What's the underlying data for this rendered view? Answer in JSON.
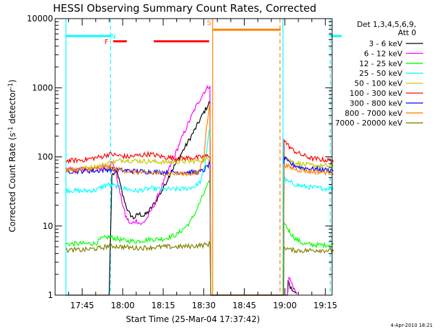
{
  "chart_data": {
    "type": "line",
    "title": "HESSI Observing Summary Count Rates, Corrected",
    "xlabel": "Start Time (25-Mar-04 17:37:42)",
    "ylabel": "Corrected Count Rate (s",
    "ylabel_sup1": "-1",
    "ylabel_mid": " detector",
    "ylabel_sup2": "-1",
    "ylabel_end": ")",
    "yscale": "log",
    "ylim": [
      1,
      10000
    ],
    "xlim_minutes": [
      17.7,
      19.37
    ],
    "y_ticks": [
      {
        "value": 1,
        "label": "1"
      },
      {
        "value": 10,
        "label": "10"
      },
      {
        "value": 100,
        "label": "100"
      },
      {
        "value": 1000,
        "label": "1000"
      },
      {
        "value": 10000,
        "label": "10000"
      }
    ],
    "x_ticks": [
      {
        "value": 45,
        "label": "17:45"
      },
      {
        "value": 60,
        "label": "18:00"
      },
      {
        "value": 75,
        "label": "18:15"
      },
      {
        "value": 90,
        "label": "18:30"
      },
      {
        "value": 105,
        "label": "18:45"
      },
      {
        "value": 120,
        "label": "19:00"
      },
      {
        "value": 135,
        "label": "19:15"
      }
    ],
    "legend_header": [
      "Det 1,3,4,5,6,9,",
      "Att 0"
    ],
    "legend_placement": "right",
    "series": [
      {
        "name": "3 - 6 keV",
        "color": "#000000",
        "pts": [
          [
            39,
            1
          ],
          [
            55,
            1
          ],
          [
            56,
            55
          ],
          [
            58,
            60
          ],
          [
            60,
            28
          ],
          [
            62,
            16
          ],
          [
            64,
            13
          ],
          [
            66,
            15
          ],
          [
            68,
            14
          ],
          [
            70,
            17
          ],
          [
            72,
            22
          ],
          [
            75,
            35
          ],
          [
            78,
            62
          ],
          [
            81,
            100
          ],
          [
            84,
            160
          ],
          [
            87,
            260
          ],
          [
            90,
            440
          ],
          [
            92.3,
            630
          ],
          [
            92.6,
            1
          ],
          [
            119.5,
            1
          ],
          [
            121,
            1
          ],
          [
            121.2,
            1.6
          ],
          [
            122,
            1.3
          ],
          [
            123,
            1.15
          ],
          [
            124.5,
            1.05
          ]
        ]
      },
      {
        "name": "6 - 12 keV",
        "color": "#ff00ff",
        "pts": [
          [
            39,
            65
          ],
          [
            52,
            68
          ],
          [
            53,
            72
          ],
          [
            56,
            82
          ],
          [
            57,
            72
          ],
          [
            59,
            30
          ],
          [
            61,
            14
          ],
          [
            63,
            10.5
          ],
          [
            65,
            12
          ],
          [
            67,
            10.5
          ],
          [
            69,
            13
          ],
          [
            71,
            18
          ],
          [
            73,
            27
          ],
          [
            75,
            42
          ],
          [
            78,
            80
          ],
          [
            81,
            155
          ],
          [
            84,
            290
          ],
          [
            87,
            520
          ],
          [
            90,
            860
          ],
          [
            92.3,
            1100
          ],
          [
            92.6,
            1
          ],
          [
            119.5,
            1
          ],
          [
            121,
            1
          ],
          [
            121.5,
            1.8
          ],
          [
            122.5,
            1.5
          ],
          [
            123.5,
            1.2
          ],
          [
            124.5,
            1.05
          ]
        ]
      },
      {
        "name": "12 - 25 keV",
        "color": "#00ff00",
        "pts": [
          [
            39,
            5.5
          ],
          [
            50,
            5.6
          ],
          [
            52,
            6.5
          ],
          [
            55,
            7
          ],
          [
            60,
            6.2
          ],
          [
            65,
            6
          ],
          [
            70,
            6.4
          ],
          [
            75,
            6.5
          ],
          [
            80,
            7.5
          ],
          [
            83,
            9.5
          ],
          [
            85,
            11.5
          ],
          [
            87,
            16
          ],
          [
            89,
            24
          ],
          [
            91,
            36
          ],
          [
            92.3,
            44
          ],
          [
            92.6,
            1
          ],
          [
            119.5,
            1
          ],
          [
            119.7,
            11
          ],
          [
            120.5,
            10
          ],
          [
            122,
            8
          ],
          [
            124,
            6.5
          ],
          [
            127,
            5.5
          ],
          [
            132,
            5.3
          ],
          [
            138,
            5.4
          ]
        ]
      },
      {
        "name": "25 - 50 keV",
        "color": "#00ffff",
        "pts": [
          [
            39,
            33
          ],
          [
            45,
            32
          ],
          [
            50,
            33
          ],
          [
            53,
            38
          ],
          [
            55,
            40
          ],
          [
            58,
            37
          ],
          [
            62,
            34
          ],
          [
            65,
            32
          ],
          [
            70,
            35
          ],
          [
            75,
            34
          ],
          [
            80,
            34
          ],
          [
            84,
            35
          ],
          [
            87,
            38
          ],
          [
            89,
            45
          ],
          [
            90.5,
            80
          ],
          [
            91.5,
            170
          ],
          [
            92.3,
            280
          ],
          [
            92.6,
            1
          ],
          [
            119.5,
            1
          ],
          [
            119.7,
            48
          ],
          [
            121,
            44
          ],
          [
            123,
            41
          ],
          [
            126,
            38
          ],
          [
            130,
            36
          ],
          [
            135,
            35
          ],
          [
            138,
            35
          ]
        ]
      },
      {
        "name": "50 - 100 keV",
        "color": "#c8c800",
        "pts": [
          [
            39,
            66
          ],
          [
            45,
            68
          ],
          [
            52,
            75
          ],
          [
            55,
            82
          ],
          [
            60,
            90
          ],
          [
            65,
            88
          ],
          [
            70,
            86
          ],
          [
            75,
            84
          ],
          [
            80,
            85
          ],
          [
            85,
            86
          ],
          [
            88,
            88
          ],
          [
            90,
            90
          ],
          [
            92.3,
            95
          ],
          [
            92.6,
            1
          ],
          [
            119.5,
            1
          ],
          [
            119.7,
            105
          ],
          [
            122,
            88
          ],
          [
            125,
            80
          ],
          [
            130,
            75
          ],
          [
            135,
            74
          ],
          [
            138,
            73
          ]
        ]
      },
      {
        "name": "100 - 300 keV",
        "color": "#ff0000",
        "pts": [
          [
            39,
            88
          ],
          [
            45,
            90
          ],
          [
            52,
            100
          ],
          [
            55,
            110
          ],
          [
            58,
            105
          ],
          [
            62,
            100
          ],
          [
            65,
            104
          ],
          [
            70,
            110
          ],
          [
            75,
            100
          ],
          [
            80,
            95
          ],
          [
            85,
            97
          ],
          [
            88,
            98
          ],
          [
            90,
            100
          ],
          [
            92.3,
            105
          ],
          [
            92.6,
            1
          ],
          [
            119.5,
            1
          ],
          [
            119.7,
            175
          ],
          [
            121,
            150
          ],
          [
            123,
            125
          ],
          [
            126,
            108
          ],
          [
            130,
            95
          ],
          [
            135,
            90
          ],
          [
            138,
            88
          ]
        ]
      },
      {
        "name": "300 - 800 keV",
        "color": "#0000ff",
        "pts": [
          [
            39,
            62
          ],
          [
            50,
            63
          ],
          [
            55,
            66
          ],
          [
            60,
            64
          ],
          [
            65,
            62
          ],
          [
            70,
            61
          ],
          [
            75,
            60
          ],
          [
            80,
            60
          ],
          [
            85,
            60
          ],
          [
            88,
            60
          ],
          [
            90,
            64
          ],
          [
            92.3,
            80
          ],
          [
            92.6,
            1
          ],
          [
            119.5,
            1
          ],
          [
            119.7,
            100
          ],
          [
            121,
            85
          ],
          [
            123,
            77
          ],
          [
            126,
            70
          ],
          [
            130,
            67
          ],
          [
            135,
            65
          ],
          [
            138,
            64
          ]
        ]
      },
      {
        "name": "800 - 7000 keV",
        "color": "#ff8000",
        "pts": [
          [
            39,
            64
          ],
          [
            45,
            66
          ],
          [
            50,
            68
          ],
          [
            55,
            70
          ],
          [
            58,
            66
          ],
          [
            62,
            62
          ],
          [
            65,
            60
          ],
          [
            70,
            58
          ],
          [
            75,
            58
          ],
          [
            80,
            57
          ],
          [
            85,
            57
          ],
          [
            88,
            58
          ],
          [
            90,
            100
          ],
          [
            91,
            260
          ],
          [
            92.3,
            600
          ],
          [
            92.6,
            1
          ],
          [
            119.5,
            1
          ],
          [
            119.7,
            78
          ],
          [
            122,
            70
          ],
          [
            125,
            65
          ],
          [
            130,
            61
          ],
          [
            135,
            60
          ],
          [
            138,
            59
          ]
        ]
      },
      {
        "name": "7000 - 20000 keV",
        "color": "#7f7f00",
        "pts": [
          [
            39,
            4.5
          ],
          [
            45,
            4.5
          ],
          [
            52,
            4.8
          ],
          [
            55,
            5.2
          ],
          [
            60,
            5
          ],
          [
            65,
            4.8
          ],
          [
            70,
            4.9
          ],
          [
            75,
            5
          ],
          [
            80,
            5
          ],
          [
            85,
            5.1
          ],
          [
            90,
            5.3
          ],
          [
            92.3,
            5.5
          ],
          [
            92.6,
            1
          ],
          [
            119.5,
            1
          ],
          [
            119.7,
            5
          ],
          [
            122,
            4.5
          ],
          [
            127,
            4.4
          ],
          [
            132,
            4.5
          ],
          [
            138,
            4.4
          ]
        ]
      }
    ],
    "state_bars": [
      {
        "flag": "N",
        "color": "#00ffff",
        "value": 5600,
        "segments": [
          [
            39,
            55.5
          ],
          [
            137,
            141
          ]
        ],
        "label_at": 56.5,
        "label_value": 5600
      },
      {
        "flag": "F",
        "color": "#ff0000",
        "value": 4700,
        "segments": [
          [
            56.5,
            61.5
          ],
          [
            71.5,
            92
          ]
        ],
        "label_at": 54,
        "label_value": 4700
      },
      {
        "flag": "S",
        "color": "#ff8000",
        "value": 6900,
        "segments": [
          [
            93.5,
            118.5
          ]
        ],
        "label_at": 92,
        "label_value": 8800
      }
    ],
    "gap_boundaries": [
      {
        "time": 39,
        "color": "#00ffff",
        "style": "solid"
      },
      {
        "time": 55.5,
        "color": "#00ffff",
        "style": "dashed"
      },
      {
        "time": 93.3,
        "color": "#ff8000",
        "style": "solid"
      },
      {
        "time": 118.2,
        "color": "#ff8000",
        "style": "dashed"
      },
      {
        "time": 119.3,
        "color": "#00ffff",
        "style": "solid"
      },
      {
        "time": 136.8,
        "color": "#00ffff",
        "style": "dashed"
      }
    ]
  },
  "footer": {
    "date_stamp": "4-Apr-2010 18:21"
  }
}
